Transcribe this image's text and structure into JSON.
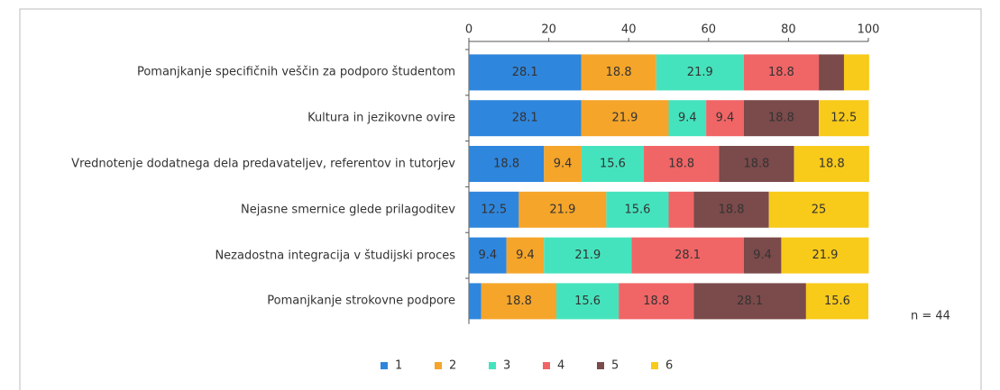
{
  "chart_data": {
    "type": "stacked_barh",
    "categories": [
      "Pomanjkanje specifičnih veščin za podporo študentom",
      "Kultura in jezikovne ovire",
      "Vrednotenje dodatnega dela predavateljev, referentov in tutorjev",
      "Nejasne smernice glede prilagoditev",
      "Nezadostna integracija v študijski proces",
      "Pomanjkanje strokovne podpore"
    ],
    "series": [
      {
        "name": "1",
        "color": "#2f86dd",
        "values": [
          28.1,
          28.1,
          18.8,
          12.5,
          9.4,
          3.1
        ]
      },
      {
        "name": "2",
        "color": "#f5a52a",
        "values": [
          18.8,
          21.9,
          9.4,
          21.9,
          9.4,
          18.8
        ]
      },
      {
        "name": "3",
        "color": "#45e3bd",
        "values": [
          21.9,
          9.4,
          15.6,
          15.6,
          21.9,
          15.6
        ]
      },
      {
        "name": "4",
        "color": "#f06566",
        "values": [
          18.8,
          9.4,
          18.8,
          6.3,
          28.1,
          18.8
        ]
      },
      {
        "name": "5",
        "color": "#7b4a4b",
        "values": [
          6.3,
          18.8,
          18.8,
          18.8,
          9.4,
          28.1
        ]
      },
      {
        "name": "6",
        "color": "#f8ca1a",
        "values": [
          6.3,
          12.5,
          18.8,
          25,
          21.9,
          15.6
        ]
      }
    ],
    "xlim": [
      0,
      100
    ],
    "xticks": [
      0,
      20,
      40,
      60,
      80,
      100
    ],
    "legend": "bottom",
    "note": "n = 44"
  }
}
